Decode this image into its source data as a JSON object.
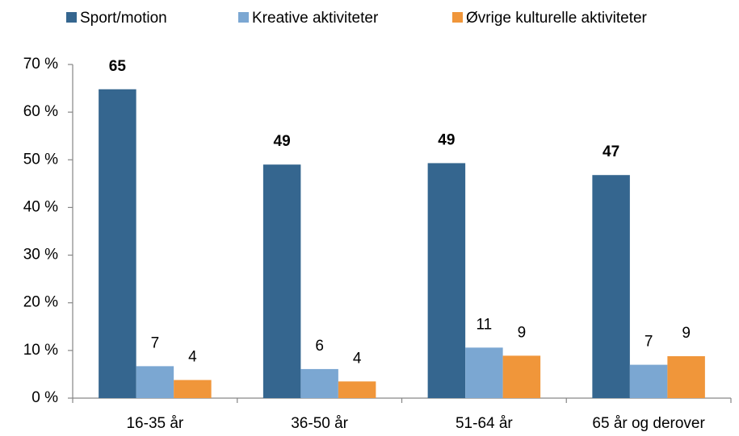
{
  "chart_data": {
    "type": "bar",
    "categories": [
      "16-35 år",
      "36-50 år",
      "51-64 år",
      "65 år og derover"
    ],
    "series": [
      {
        "name": "Sport/motion",
        "color": "#35668f",
        "values": [
          64.8,
          49,
          49.3,
          46.8
        ],
        "value_labels": [
          "65",
          "49",
          "49",
          "47"
        ]
      },
      {
        "name": "Kreative aktiviteter",
        "color": "#7ba7d2",
        "values": [
          6.7,
          6.1,
          10.6,
          7
        ],
        "value_labels": [
          "7",
          "6",
          "11",
          "7"
        ]
      },
      {
        "name": "Øvrige kulturelle aktiviteter",
        "color": "#f0963a",
        "values": [
          3.8,
          3.5,
          8.9,
          8.8
        ],
        "value_labels": [
          "4",
          "4",
          "9",
          "9"
        ]
      }
    ],
    "ylim": [
      0,
      70
    ],
    "yticks": [
      {
        "value": 0,
        "label": "0 %"
      },
      {
        "value": 10,
        "label": "10 %"
      },
      {
        "value": 20,
        "label": "20 %"
      },
      {
        "value": 30,
        "label": "30 %"
      },
      {
        "value": 40,
        "label": "40 %"
      },
      {
        "value": 50,
        "label": "50 %"
      },
      {
        "value": 60,
        "label": "60 %"
      },
      {
        "value": 70,
        "label": "70 %"
      }
    ],
    "grid": false,
    "legend": "top"
  }
}
